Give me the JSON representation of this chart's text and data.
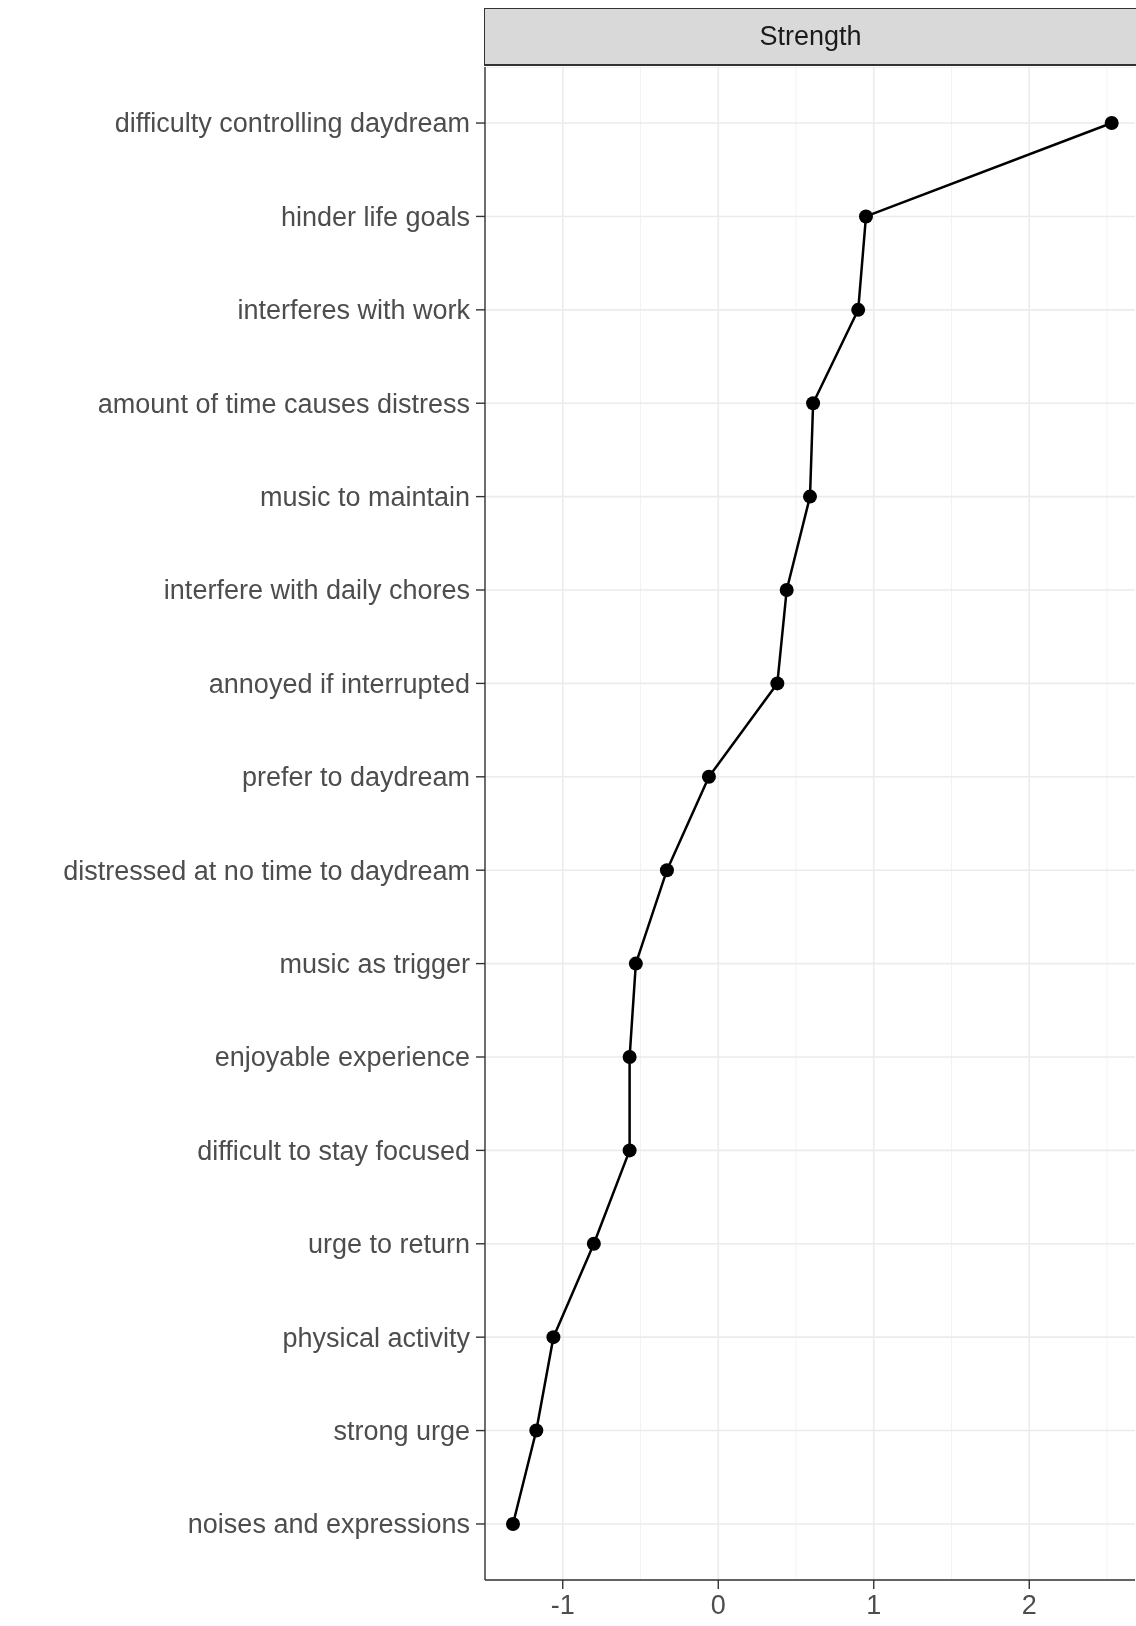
{
  "chart_data": {
    "type": "line",
    "orientation": "horizontal",
    "title": "Strength",
    "categories": [
      "difficulty controlling daydream",
      "hinder life goals",
      "interferes with work",
      "amount of time causes distress",
      "music to maintain",
      "interfere with daily chores",
      "annoyed if interrupted",
      "prefer to daydream",
      "distressed at no time to daydream",
      "music as trigger",
      "enjoyable experience",
      "difficult to stay focused",
      "urge to return",
      "physical activity",
      "strong urge",
      "noises and expressions"
    ],
    "values": [
      2.53,
      0.95,
      0.9,
      0.61,
      0.59,
      0.44,
      0.38,
      -0.06,
      -0.33,
      -0.53,
      -0.57,
      -0.57,
      -0.8,
      -1.06,
      -1.17,
      -1.32
    ],
    "color": "#000000",
    "xlim": [
      -1.5,
      2.68
    ],
    "xticks": [
      -1,
      0,
      1,
      2
    ],
    "grid": true,
    "marker": "circle",
    "line_style": "solid"
  }
}
